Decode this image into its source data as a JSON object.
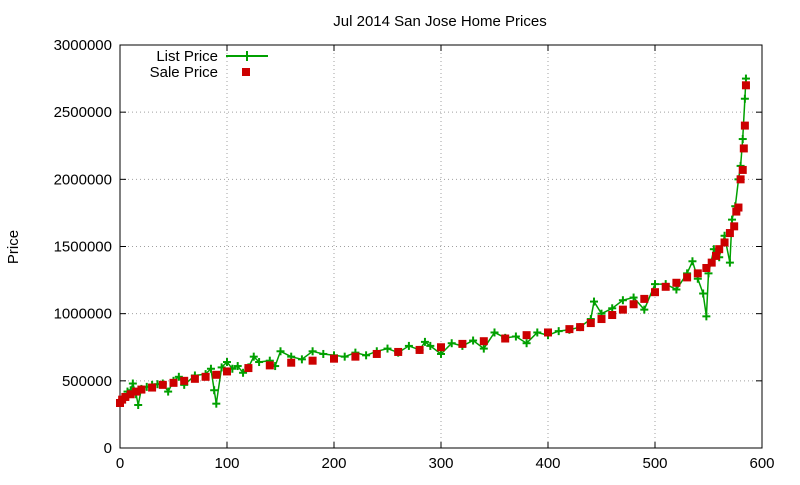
{
  "chart_data": {
    "type": "scatter",
    "title": "Jul 2014 San Jose Home Prices",
    "xlabel": "",
    "ylabel": "Price",
    "xlim": [
      0,
      600
    ],
    "ylim": [
      0,
      3000000
    ],
    "x_ticks": [
      0,
      100,
      200,
      300,
      400,
      500,
      600
    ],
    "y_ticks": [
      0,
      500000,
      1000000,
      1500000,
      2000000,
      2500000,
      3000000
    ],
    "grid": true,
    "legend_position": "top-left",
    "n_points": 585,
    "series": [
      {
        "name": "List Price",
        "style": "linespoints",
        "marker": "plus",
        "color": "#00a000",
        "values": [
          [
            0,
            340000
          ],
          [
            2,
            360000
          ],
          [
            5,
            380000
          ],
          [
            7,
            420000
          ],
          [
            10,
            430000
          ],
          [
            12,
            480000
          ],
          [
            15,
            400000
          ],
          [
            17,
            320000
          ],
          [
            20,
            440000
          ],
          [
            25,
            455000
          ],
          [
            30,
            470000
          ],
          [
            35,
            475000
          ],
          [
            40,
            480000
          ],
          [
            45,
            420000
          ],
          [
            50,
            500000
          ],
          [
            55,
            530000
          ],
          [
            60,
            470000
          ],
          [
            70,
            540000
          ],
          [
            80,
            550000
          ],
          [
            85,
            590000
          ],
          [
            88,
            430000
          ],
          [
            90,
            330000
          ],
          [
            95,
            600000
          ],
          [
            100,
            640000
          ],
          [
            105,
            590000
          ],
          [
            110,
            610000
          ],
          [
            115,
            560000
          ],
          [
            120,
            600000
          ],
          [
            125,
            680000
          ],
          [
            130,
            640000
          ],
          [
            140,
            650000
          ],
          [
            145,
            610000
          ],
          [
            150,
            720000
          ],
          [
            160,
            680000
          ],
          [
            170,
            660000
          ],
          [
            180,
            720000
          ],
          [
            190,
            700000
          ],
          [
            200,
            690000
          ],
          [
            210,
            680000
          ],
          [
            220,
            710000
          ],
          [
            230,
            690000
          ],
          [
            240,
            720000
          ],
          [
            250,
            740000
          ],
          [
            260,
            710000
          ],
          [
            270,
            760000
          ],
          [
            280,
            730000
          ],
          [
            285,
            790000
          ],
          [
            290,
            760000
          ],
          [
            300,
            700000
          ],
          [
            310,
            780000
          ],
          [
            320,
            760000
          ],
          [
            330,
            800000
          ],
          [
            340,
            740000
          ],
          [
            350,
            860000
          ],
          [
            360,
            820000
          ],
          [
            370,
            830000
          ],
          [
            380,
            780000
          ],
          [
            390,
            860000
          ],
          [
            400,
            840000
          ],
          [
            410,
            870000
          ],
          [
            420,
            880000
          ],
          [
            430,
            900000
          ],
          [
            440,
            960000
          ],
          [
            443,
            1090000
          ],
          [
            450,
            1000000
          ],
          [
            460,
            1040000
          ],
          [
            470,
            1100000
          ],
          [
            480,
            1120000
          ],
          [
            490,
            1030000
          ],
          [
            500,
            1220000
          ],
          [
            510,
            1220000
          ],
          [
            520,
            1180000
          ],
          [
            530,
            1300000
          ],
          [
            535,
            1390000
          ],
          [
            540,
            1260000
          ],
          [
            545,
            1150000
          ],
          [
            548,
            980000
          ],
          [
            550,
            1300000
          ],
          [
            555,
            1480000
          ],
          [
            560,
            1420000
          ],
          [
            565,
            1580000
          ],
          [
            570,
            1380000
          ],
          [
            572,
            1700000
          ],
          [
            575,
            1800000
          ],
          [
            578,
            2000000
          ],
          [
            580,
            2100000
          ],
          [
            582,
            2300000
          ],
          [
            584,
            2600000
          ],
          [
            585,
            2750000
          ]
        ]
      },
      {
        "name": "Sale Price",
        "style": "points",
        "marker": "square",
        "color": "#cc0000",
        "values": [
          [
            0,
            335000
          ],
          [
            2,
            360000
          ],
          [
            5,
            380000
          ],
          [
            10,
            400000
          ],
          [
            15,
            420000
          ],
          [
            20,
            435000
          ],
          [
            30,
            450000
          ],
          [
            40,
            470000
          ],
          [
            50,
            485000
          ],
          [
            60,
            500000
          ],
          [
            70,
            515000
          ],
          [
            80,
            530000
          ],
          [
            90,
            545000
          ],
          [
            100,
            570000
          ],
          [
            120,
            595000
          ],
          [
            140,
            615000
          ],
          [
            160,
            635000
          ],
          [
            180,
            650000
          ],
          [
            200,
            665000
          ],
          [
            220,
            680000
          ],
          [
            240,
            700000
          ],
          [
            260,
            715000
          ],
          [
            280,
            730000
          ],
          [
            300,
            750000
          ],
          [
            320,
            775000
          ],
          [
            340,
            795000
          ],
          [
            360,
            815000
          ],
          [
            380,
            840000
          ],
          [
            400,
            860000
          ],
          [
            420,
            885000
          ],
          [
            430,
            900000
          ],
          [
            440,
            930000
          ],
          [
            450,
            960000
          ],
          [
            460,
            990000
          ],
          [
            470,
            1030000
          ],
          [
            480,
            1070000
          ],
          [
            490,
            1110000
          ],
          [
            500,
            1160000
          ],
          [
            510,
            1200000
          ],
          [
            520,
            1230000
          ],
          [
            530,
            1270000
          ],
          [
            540,
            1300000
          ],
          [
            548,
            1340000
          ],
          [
            553,
            1380000
          ],
          [
            557,
            1430000
          ],
          [
            560,
            1480000
          ],
          [
            565,
            1530000
          ],
          [
            570,
            1600000
          ],
          [
            574,
            1650000
          ],
          [
            576,
            1760000
          ],
          [
            578,
            1790000
          ],
          [
            580,
            2000000
          ],
          [
            582,
            2070000
          ],
          [
            583,
            2230000
          ],
          [
            584,
            2400000
          ],
          [
            585,
            2700000
          ]
        ]
      }
    ]
  }
}
